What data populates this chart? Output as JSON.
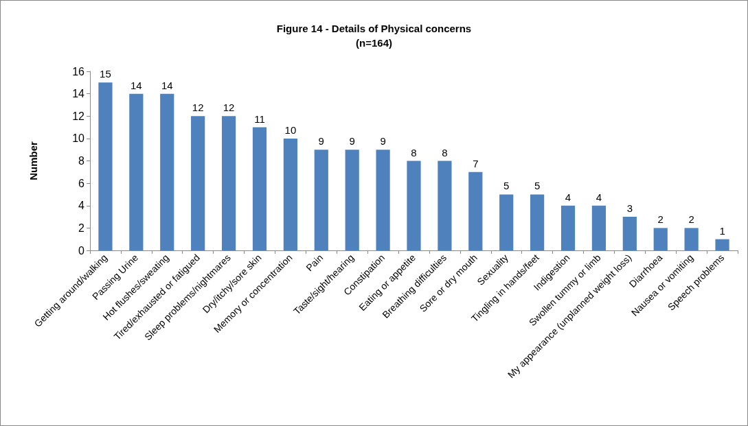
{
  "chart_data": {
    "type": "bar",
    "title": "Figure 14 - Details of Physical concerns",
    "subtitle": "(n=164)",
    "ylabel": "Number",
    "categories": [
      "Getting around/walking",
      "Passing Urine",
      "Hot flushes/sweating",
      "Tired/exhausted or fatigued",
      "Sleep problems/nightmares",
      "Dry/itchy/sore skin",
      "Memory or concentration",
      "Pain",
      "Taste/sight/hearing",
      "Constipation",
      "Eating or appetite",
      "Breathing difficulties",
      "Sore or dry mouth",
      "Sexuality",
      "Tingling in hands/feet",
      "Indigestion",
      "Swollen tummy or limb",
      "My appearance (unplanned weight loss)",
      "Diarrhoea",
      "Nausea or vomiting",
      "Speech problems"
    ],
    "values": [
      15,
      14,
      14,
      12,
      12,
      11,
      10,
      9,
      9,
      9,
      8,
      8,
      7,
      5,
      5,
      4,
      4,
      3,
      2,
      2,
      1
    ],
    "color": "#4f81bd",
    "ylim": [
      0,
      16
    ],
    "yticks": [
      0,
      2,
      4,
      6,
      8,
      10,
      12,
      14,
      16
    ],
    "data_labels": true,
    "grid": false
  }
}
